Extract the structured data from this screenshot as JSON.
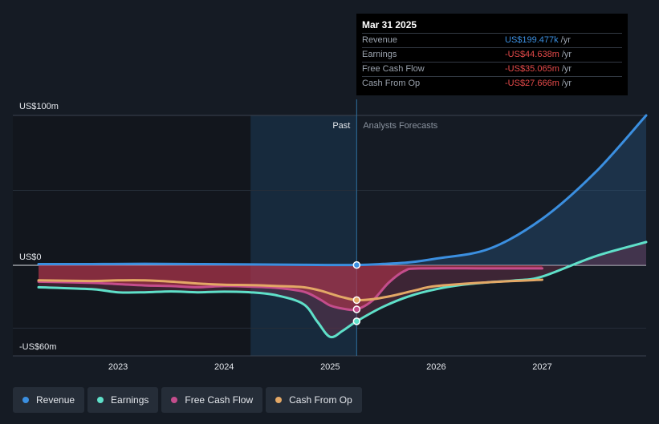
{
  "chart_data": {
    "type": "line",
    "y_tick_labels": [
      "US$100m",
      "US$0",
      "-US$60m"
    ],
    "x_tick_labels": [
      "2023",
      "2024",
      "2025",
      "2026",
      "2027"
    ],
    "x_range": [
      2022.25,
      2027.98
    ],
    "y_range": [
      -60,
      100
    ],
    "divider_x": 2025.25,
    "past_label": "Past",
    "forecast_label": "Analysts Forecasts",
    "grid": true,
    "series": [
      {
        "name": "Revenue",
        "color": "#3b8fe0",
        "points": [
          [
            2022.25,
            0.8
          ],
          [
            2022.75,
            0.8
          ],
          [
            2023.25,
            1.0
          ],
          [
            2023.75,
            0.8
          ],
          [
            2024.25,
            0.6
          ],
          [
            2024.75,
            0.3
          ],
          [
            2025.25,
            0.2
          ],
          [
            2025.5,
            0.9
          ],
          [
            2025.75,
            2.0
          ],
          [
            2026.0,
            4.5
          ],
          [
            2026.5,
            11.0
          ],
          [
            2027.0,
            31.0
          ],
          [
            2027.5,
            62.0
          ],
          [
            2027.98,
            100.0
          ]
        ]
      },
      {
        "name": "Earnings",
        "color": "#5fe0c9",
        "points": [
          [
            2022.25,
            -17.5
          ],
          [
            2022.75,
            -19.0
          ],
          [
            2023.0,
            -21.5
          ],
          [
            2023.25,
            -21.5
          ],
          [
            2023.5,
            -20.8
          ],
          [
            2023.75,
            -21.5
          ],
          [
            2024.0,
            -21.0
          ],
          [
            2024.25,
            -21.5
          ],
          [
            2024.5,
            -24.0
          ],
          [
            2024.75,
            -31.0
          ],
          [
            2024.88,
            -45.0
          ],
          [
            2025.0,
            -57.0
          ],
          [
            2025.12,
            -52.0
          ],
          [
            2025.25,
            -44.6
          ],
          [
            2025.5,
            -33.0
          ],
          [
            2025.75,
            -24.5
          ],
          [
            2026.0,
            -19.0
          ],
          [
            2026.25,
            -15.5
          ],
          [
            2026.5,
            -13.5
          ],
          [
            2026.75,
            -12.0
          ],
          [
            2027.0,
            -9.0
          ],
          [
            2027.5,
            6.0
          ],
          [
            2027.98,
            15.5
          ]
        ]
      },
      {
        "name": "Free Cash Flow",
        "color": "#c44d8c",
        "points": [
          [
            2022.25,
            -13.0
          ],
          [
            2022.75,
            -14.0
          ],
          [
            2023.0,
            -15.0
          ],
          [
            2023.25,
            -16.0
          ],
          [
            2023.5,
            -16.5
          ],
          [
            2023.75,
            -17.5
          ],
          [
            2024.0,
            -16.5
          ],
          [
            2024.25,
            -17.0
          ],
          [
            2024.5,
            -18.0
          ],
          [
            2024.75,
            -21.0
          ],
          [
            2024.9,
            -27.0
          ],
          [
            2025.0,
            -32.0
          ],
          [
            2025.12,
            -34.5
          ],
          [
            2025.25,
            -35.1
          ],
          [
            2025.4,
            -28.0
          ],
          [
            2025.55,
            -14.0
          ],
          [
            2025.7,
            -4.5
          ],
          [
            2025.85,
            -2.5
          ],
          [
            2026.5,
            -2.5
          ],
          [
            2027.0,
            -2.5
          ]
        ]
      },
      {
        "name": "Cash From Op",
        "color": "#e3a866",
        "points": [
          [
            2022.25,
            -12.0
          ],
          [
            2022.75,
            -12.5
          ],
          [
            2023.0,
            -12.0
          ],
          [
            2023.25,
            -12.0
          ],
          [
            2023.5,
            -13.0
          ],
          [
            2023.75,
            -14.5
          ],
          [
            2024.0,
            -15.5
          ],
          [
            2024.25,
            -15.8
          ],
          [
            2024.5,
            -16.5
          ],
          [
            2024.75,
            -17.5
          ],
          [
            2024.9,
            -20.0
          ],
          [
            2025.0,
            -22.5
          ],
          [
            2025.12,
            -25.5
          ],
          [
            2025.25,
            -27.7
          ],
          [
            2025.4,
            -27.0
          ],
          [
            2025.6,
            -24.0
          ],
          [
            2025.8,
            -20.0
          ],
          [
            2026.0,
            -16.5
          ],
          [
            2026.5,
            -13.5
          ],
          [
            2027.0,
            -11.5
          ]
        ]
      }
    ]
  },
  "tooltip": {
    "date": "Mar 31 2025",
    "rows": [
      {
        "label": "Revenue",
        "value": "US$199.477k",
        "unit": "/yr",
        "color": "#3b8fe0"
      },
      {
        "label": "Earnings",
        "value": "-US$44.638m",
        "unit": "/yr",
        "color": "#e64a4a"
      },
      {
        "label": "Free Cash Flow",
        "value": "-US$35.065m",
        "unit": "/yr",
        "color": "#e64a4a"
      },
      {
        "label": "Cash From Op",
        "value": "-US$27.666m",
        "unit": "/yr",
        "color": "#e64a4a"
      }
    ]
  },
  "legend": [
    {
      "label": "Revenue",
      "color": "#3b8fe0"
    },
    {
      "label": "Earnings",
      "color": "#5fe0c9"
    },
    {
      "label": "Free Cash Flow",
      "color": "#c44d8c"
    },
    {
      "label": "Cash From Op",
      "color": "#e3a866"
    }
  ]
}
